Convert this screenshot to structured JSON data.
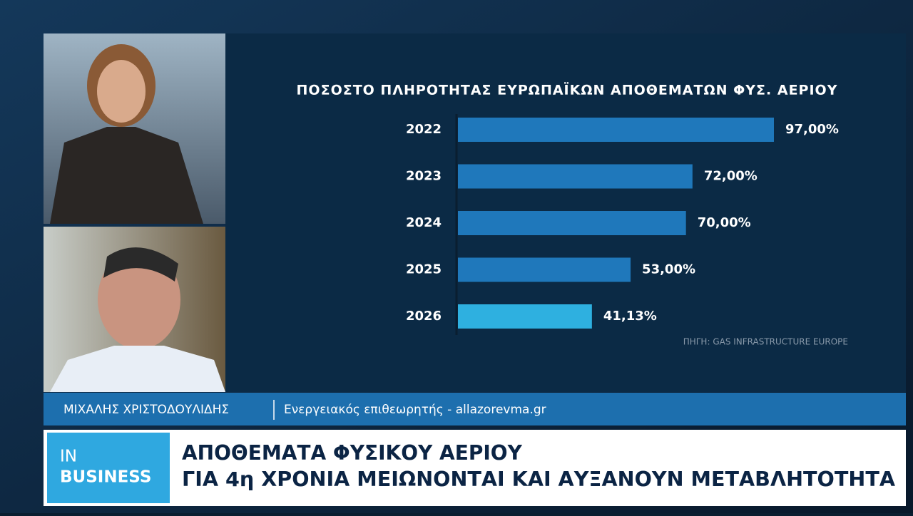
{
  "chart_data": {
    "type": "bar",
    "orientation": "horizontal",
    "title": "ΠΟΣΟΣΤΟ ΠΛΗΡΟΤΗΤΑΣ ΕΥΡΩΠΑΪΚΩΝ ΑΠΟΘΕΜΑΤΩΝ ΦΥΣ. ΑΕΡΙΟΥ",
    "categories": [
      "2022",
      "2023",
      "2024",
      "2025",
      "2026"
    ],
    "values": [
      97,
      72,
      70,
      53,
      41.13
    ],
    "value_labels": [
      "97,00%",
      "72,00%",
      "70,00%",
      "53,00%",
      "41,13%"
    ],
    "colors": [
      "#1f78bb",
      "#1f78bb",
      "#1f78bb",
      "#1f78bb",
      "#2eb0e0"
    ],
    "source": "ΠΗΓΗ: GAS INFRASTRUCTURE EUROPE"
  },
  "name_strap": {
    "name": "ΜΙΧΑΛΗΣ ΧΡΙΣΤΟΔΟΥΛΙΔΗΣ",
    "role": "Ενεργειακός επιθεωρητής - allazorevma.gr"
  },
  "logo": {
    "line1": "IN",
    "line2": "BUSINESS"
  },
  "headline": {
    "line1": "ΑΠΟΘΕΜΑΤΑ ΦΥΣΙΚΟΥ ΑΕΡΙΟΥ",
    "line2": "ΓΙΑ 4η ΧΡΟΝΙΑ ΜΕΙΩΝΟΝΤΑΙ ΚΑΙ ΑΥΞΑΝΟΥΝ ΜΕΤΑΒΛΗΤΟΤΗΤΑ"
  }
}
